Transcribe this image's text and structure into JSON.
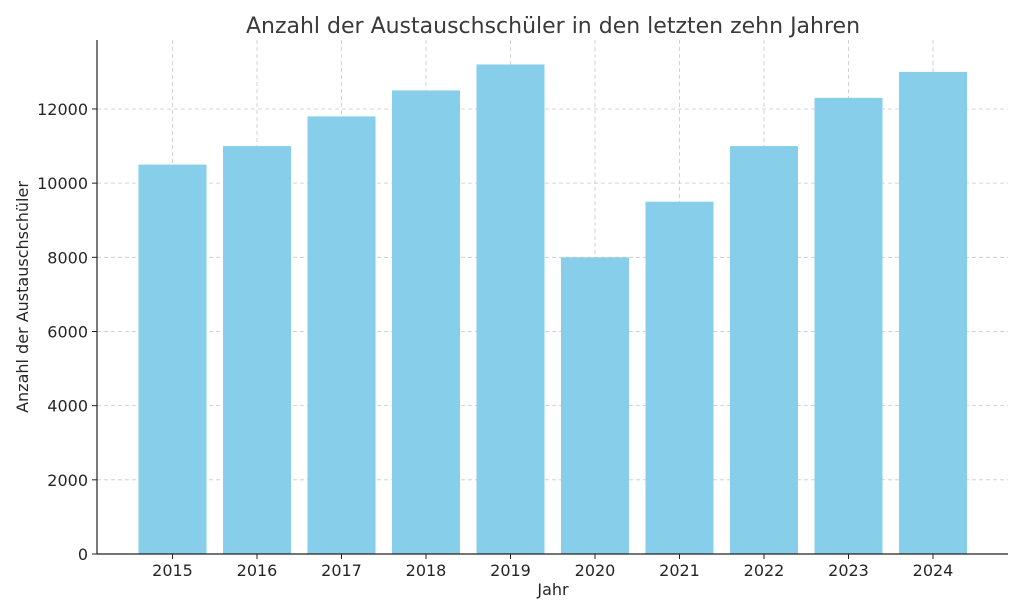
{
  "chart_data": {
    "type": "bar",
    "title": "Anzahl der Austauschschüler in den letzten zehn Jahren",
    "xlabel": "Jahr",
    "ylabel": "Anzahl der Austauschschüler",
    "categories": [
      "2015",
      "2016",
      "2017",
      "2018",
      "2019",
      "2020",
      "2021",
      "2022",
      "2023",
      "2024"
    ],
    "values": [
      10500,
      11000,
      11800,
      12500,
      13200,
      8000,
      9500,
      11000,
      12300,
      13000
    ],
    "ylim": [
      0,
      13860
    ],
    "yticks": [
      0,
      2000,
      4000,
      6000,
      8000,
      10000,
      12000
    ],
    "grid": true,
    "bar_color": "#87CEEB"
  }
}
